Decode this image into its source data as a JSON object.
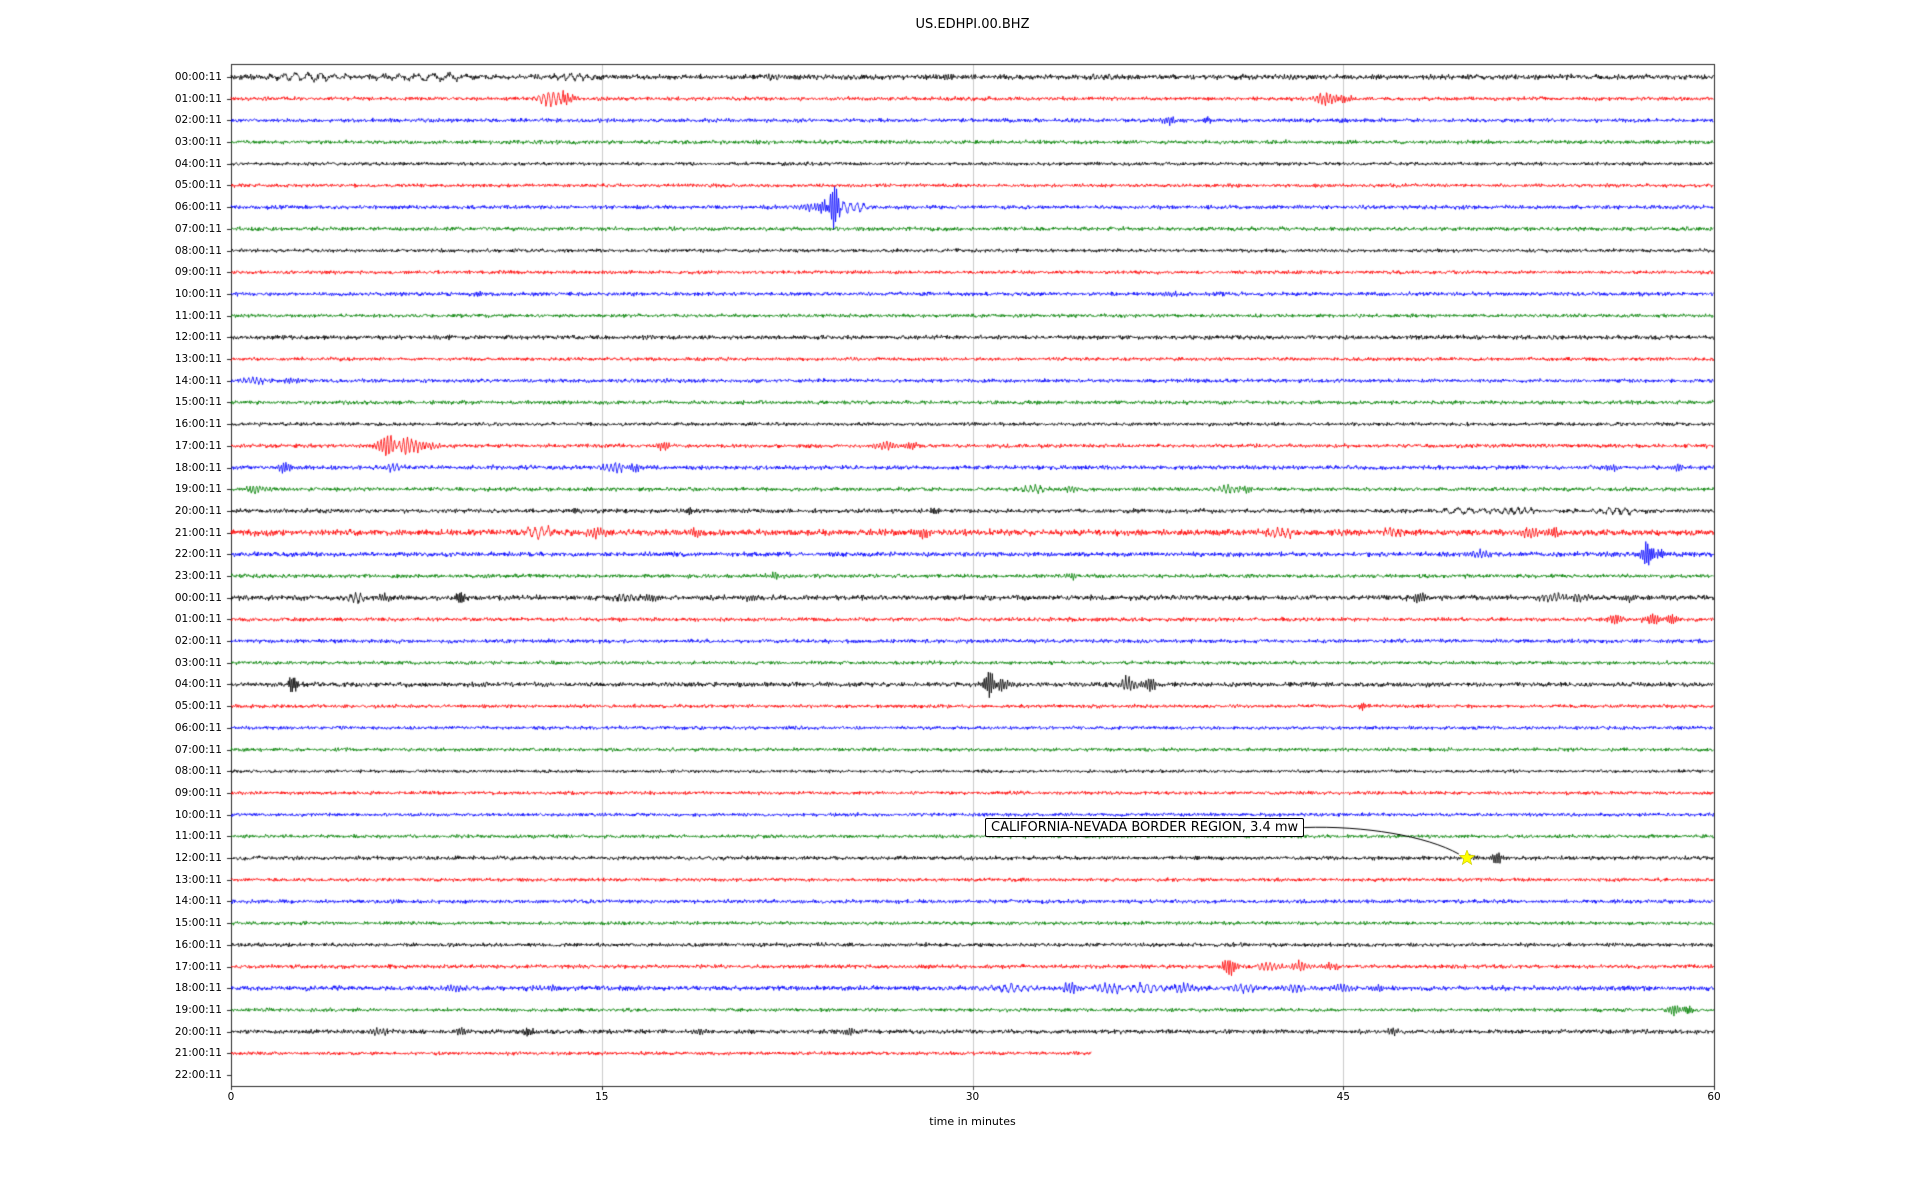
{
  "title": "US.EDHPI.00.BHZ",
  "xlabel": "time in minutes",
  "x_tick_labels": [
    "0",
    "15",
    "30",
    "45",
    "60"
  ],
  "annotation": {
    "text": "CALIFORNIA-NEVADA BORDER REGION, 3.4 mw",
    "row_index": 36,
    "x_minutes": 50,
    "marker": "yellow-star"
  },
  "palette": {
    "black": "#000000",
    "red": "#ff0000",
    "blue": "#0000ff",
    "green": "#008000",
    "star_fill": "#ffff00",
    "star_edge": "#c8c800",
    "grid": "#cccccc",
    "spine": "#2a2a2a"
  },
  "chart_data": {
    "type": "line",
    "title": "US.EDHPI.00.BHZ",
    "xlabel": "time in minutes",
    "xlim": [
      0,
      60
    ],
    "x_ticks": [
      0,
      15,
      30,
      45,
      60
    ],
    "grid": "vertical",
    "trace_color_cycle": [
      "black",
      "red",
      "blue",
      "green"
    ],
    "event_marker": {
      "row_index": 36,
      "x": 50,
      "label": "CALIFORNIA-NEVADA BORDER REGION, 3.4 mw"
    },
    "rows": [
      {
        "label": "00:00:11",
        "color": "black",
        "noise": 1.3,
        "end": 60,
        "events": [
          [
            3,
            2,
            1.5
          ],
          [
            8,
            1.8,
            2
          ],
          [
            14,
            1.5,
            1
          ],
          [
            22,
            1.5,
            0.4
          ],
          [
            29,
            1.6,
            0.3
          ],
          [
            35,
            1.4,
            0.5
          ],
          [
            43,
            1.4,
            0.4
          ]
        ]
      },
      {
        "label": "01:00:11",
        "color": "red",
        "noise": 1.0,
        "end": 60,
        "events": [
          [
            13,
            4,
            0.6
          ],
          [
            13.6,
            3,
            0.3
          ],
          [
            44.3,
            3.5,
            0.4
          ],
          [
            45,
            2.5,
            0.3
          ]
        ]
      },
      {
        "label": "02:00:11",
        "color": "blue",
        "noise": 1.0,
        "end": 60,
        "events": [
          [
            38,
            2.2,
            0.3
          ],
          [
            39.5,
            2,
            0.2
          ],
          [
            45,
            1.5,
            0.2
          ]
        ]
      },
      {
        "label": "03:00:11",
        "color": "green",
        "noise": 1.0,
        "end": 60,
        "events": []
      },
      {
        "label": "04:00:11",
        "color": "black",
        "noise": 0.9,
        "end": 60,
        "events": []
      },
      {
        "label": "05:00:11",
        "color": "red",
        "noise": 0.9,
        "end": 60,
        "events": []
      },
      {
        "label": "06:00:11",
        "color": "blue",
        "noise": 1.0,
        "end": 60,
        "events": [
          [
            24.4,
            11,
            0.25
          ],
          [
            24,
            4,
            0.3
          ],
          [
            25,
            3,
            0.8
          ],
          [
            23.3,
            2.5,
            0.4
          ]
        ]
      },
      {
        "label": "07:00:11",
        "color": "green",
        "noise": 1.0,
        "end": 60,
        "events": []
      },
      {
        "label": "08:00:11",
        "color": "black",
        "noise": 0.9,
        "end": 60,
        "events": []
      },
      {
        "label": "09:00:11",
        "color": "red",
        "noise": 0.9,
        "end": 60,
        "events": []
      },
      {
        "label": "10:00:11",
        "color": "blue",
        "noise": 1.0,
        "end": 60,
        "events": [
          [
            10,
            1.6,
            0.2
          ],
          [
            38,
            1.5,
            0.3
          ],
          [
            40,
            1.4,
            0.2
          ]
        ]
      },
      {
        "label": "11:00:11",
        "color": "green",
        "noise": 0.9,
        "end": 60,
        "events": []
      },
      {
        "label": "12:00:11",
        "color": "black",
        "noise": 1.1,
        "end": 60,
        "events": []
      },
      {
        "label": "13:00:11",
        "color": "red",
        "noise": 0.9,
        "end": 60,
        "events": []
      },
      {
        "label": "14:00:11",
        "color": "blue",
        "noise": 1.0,
        "end": 60,
        "events": [
          [
            1,
            1.8,
            0.5
          ],
          [
            2.5,
            1.6,
            0.3
          ]
        ]
      },
      {
        "label": "15:00:11",
        "color": "green",
        "noise": 1.0,
        "end": 60,
        "events": []
      },
      {
        "label": "16:00:11",
        "color": "black",
        "noise": 0.9,
        "end": 60,
        "events": []
      },
      {
        "label": "17:00:11",
        "color": "red",
        "noise": 1.0,
        "end": 60,
        "events": [
          [
            6.3,
            5.5,
            0.4
          ],
          [
            7.1,
            4.5,
            0.5
          ],
          [
            8,
            2.5,
            0.4
          ],
          [
            17.5,
            2,
            0.3
          ],
          [
            26.5,
            2.2,
            0.4
          ],
          [
            27.5,
            1.8,
            0.3
          ]
        ]
      },
      {
        "label": "18:00:11",
        "color": "blue",
        "noise": 1.1,
        "end": 60,
        "events": [
          [
            2.2,
            3.2,
            0.3
          ],
          [
            6.5,
            2,
            0.5
          ],
          [
            15.5,
            2.5,
            0.5
          ],
          [
            16.3,
            2.2,
            0.3
          ],
          [
            55.8,
            2,
            0.3
          ],
          [
            58.5,
            1.8,
            0.3
          ]
        ]
      },
      {
        "label": "19:00:11",
        "color": "green",
        "noise": 1.0,
        "end": 60,
        "events": [
          [
            1,
            2.5,
            0.4
          ],
          [
            32.5,
            1.8,
            0.6
          ],
          [
            34,
            1.6,
            0.4
          ],
          [
            40.3,
            2.4,
            0.5
          ],
          [
            41,
            1.8,
            0.3
          ]
        ]
      },
      {
        "label": "20:00:11",
        "color": "black",
        "noise": 1.1,
        "end": 60,
        "events": [
          [
            14,
            1.8,
            0.2
          ],
          [
            18.5,
            2,
            0.2
          ],
          [
            28.5,
            2,
            0.2
          ],
          [
            50,
            1.6,
            1.5
          ],
          [
            52,
            1.8,
            0.8
          ],
          [
            56,
            1.6,
            1
          ]
        ]
      },
      {
        "label": "21:00:11",
        "color": "red",
        "noise": 1.6,
        "end": 60,
        "events": [
          [
            12.5,
            2.6,
            0.8
          ],
          [
            14.8,
            2.4,
            0.4
          ],
          [
            18.8,
            2.2,
            0.3
          ],
          [
            28,
            2.6,
            0.3
          ],
          [
            42.5,
            2.2,
            0.6
          ],
          [
            47,
            2.4,
            0.5
          ],
          [
            52.5,
            3,
            0.4
          ],
          [
            53.5,
            2.4,
            0.3
          ]
        ]
      },
      {
        "label": "22:00:11",
        "color": "blue",
        "noise": 1.2,
        "end": 60,
        "events": [
          [
            50.5,
            2,
            0.4
          ],
          [
            57.3,
            6,
            0.25
          ],
          [
            57.8,
            3,
            0.2
          ]
        ]
      },
      {
        "label": "23:00:11",
        "color": "green",
        "noise": 1.0,
        "end": 60,
        "events": [
          [
            22,
            1.6,
            0.3
          ],
          [
            34,
            1.5,
            0.3
          ]
        ]
      },
      {
        "label": "00:00:11",
        "color": "black",
        "noise": 1.3,
        "end": 60,
        "events": [
          [
            5,
            2,
            0.6
          ],
          [
            6.2,
            1.8,
            0.3
          ],
          [
            9.3,
            3.5,
            0.2
          ],
          [
            16,
            2.2,
            0.5
          ],
          [
            17,
            2,
            0.3
          ],
          [
            21,
            1.6,
            0.3
          ],
          [
            48,
            2.2,
            0.3
          ],
          [
            53.5,
            2.4,
            0.5
          ],
          [
            54.5,
            2.2,
            0.4
          ],
          [
            56.5,
            1.8,
            0.3
          ]
        ]
      },
      {
        "label": "01:00:11",
        "color": "red",
        "noise": 1.0,
        "end": 60,
        "events": [
          [
            56,
            2.6,
            0.3
          ],
          [
            57.5,
            3.2,
            0.3
          ],
          [
            58.3,
            2.6,
            0.25
          ]
        ]
      },
      {
        "label": "02:00:11",
        "color": "blue",
        "noise": 1.0,
        "end": 60,
        "events": []
      },
      {
        "label": "03:00:11",
        "color": "green",
        "noise": 0.9,
        "end": 60,
        "events": []
      },
      {
        "label": "04:00:11",
        "color": "black",
        "noise": 1.2,
        "end": 60,
        "events": [
          [
            2.5,
            5,
            0.2
          ],
          [
            30.7,
            6.5,
            0.25
          ],
          [
            31.2,
            3,
            0.3
          ],
          [
            36.3,
            3.5,
            0.4
          ],
          [
            37.2,
            3.5,
            0.3
          ]
        ]
      },
      {
        "label": "05:00:11",
        "color": "red",
        "noise": 0.9,
        "end": 60,
        "events": [
          [
            45.8,
            1.8,
            0.2
          ]
        ]
      },
      {
        "label": "06:00:11",
        "color": "blue",
        "noise": 0.9,
        "end": 60,
        "events": []
      },
      {
        "label": "07:00:11",
        "color": "green",
        "noise": 0.9,
        "end": 60,
        "events": []
      },
      {
        "label": "08:00:11",
        "color": "black",
        "noise": 0.8,
        "end": 60,
        "events": []
      },
      {
        "label": "09:00:11",
        "color": "red",
        "noise": 0.9,
        "end": 60,
        "events": []
      },
      {
        "label": "10:00:11",
        "color": "blue",
        "noise": 0.9,
        "end": 60,
        "events": []
      },
      {
        "label": "11:00:11",
        "color": "green",
        "noise": 0.9,
        "end": 60,
        "events": []
      },
      {
        "label": "12:00:11",
        "color": "black",
        "noise": 1.0,
        "end": 60,
        "events": [
          [
            50.2,
            1.4,
            0.3
          ],
          [
            51.2,
            3,
            0.25
          ]
        ]
      },
      {
        "label": "13:00:11",
        "color": "red",
        "noise": 0.9,
        "end": 60,
        "events": []
      },
      {
        "label": "14:00:11",
        "color": "blue",
        "noise": 1.0,
        "end": 60,
        "events": []
      },
      {
        "label": "15:00:11",
        "color": "green",
        "noise": 0.9,
        "end": 60,
        "events": []
      },
      {
        "label": "16:00:11",
        "color": "black",
        "noise": 1.0,
        "end": 60,
        "events": []
      },
      {
        "label": "17:00:11",
        "color": "red",
        "noise": 1.0,
        "end": 60,
        "events": [
          [
            40.4,
            5,
            0.3
          ],
          [
            42,
            2.4,
            0.5
          ],
          [
            43.3,
            2.6,
            0.4
          ],
          [
            44.5,
            2,
            0.3
          ]
        ]
      },
      {
        "label": "18:00:11",
        "color": "blue",
        "noise": 1.2,
        "end": 60,
        "events": [
          [
            9,
            1.8,
            0.4
          ],
          [
            13,
            1.6,
            0.3
          ],
          [
            31.5,
            2.2,
            0.8
          ],
          [
            34,
            3.2,
            0.4
          ],
          [
            35.5,
            2.6,
            0.6
          ],
          [
            37,
            2.8,
            0.8
          ],
          [
            38.5,
            2.4,
            0.5
          ],
          [
            41,
            2.2,
            0.6
          ],
          [
            43,
            2.4,
            0.5
          ],
          [
            45,
            2,
            0.4
          ],
          [
            46.5,
            2.2,
            0.3
          ]
        ]
      },
      {
        "label": "19:00:11",
        "color": "green",
        "noise": 0.9,
        "end": 60,
        "events": [
          [
            58.4,
            3,
            0.3
          ],
          [
            59,
            2.2,
            0.2
          ]
        ]
      },
      {
        "label": "20:00:11",
        "color": "black",
        "noise": 1.1,
        "end": 60,
        "events": [
          [
            6,
            2,
            0.4
          ],
          [
            9.3,
            2.2,
            0.3
          ],
          [
            12,
            2.6,
            0.2
          ],
          [
            19,
            1.8,
            0.3
          ],
          [
            25,
            1.8,
            0.3
          ],
          [
            47,
            1.8,
            0.3
          ]
        ]
      },
      {
        "label": "21:00:11",
        "color": "red",
        "noise": 0.9,
        "end": 34.8,
        "events": []
      },
      {
        "label": "22:00:11",
        "color": null,
        "noise": 0,
        "end": 0,
        "events": []
      }
    ]
  }
}
